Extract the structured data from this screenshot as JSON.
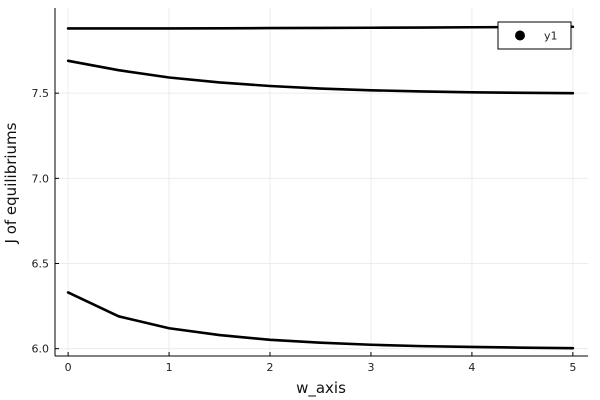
{
  "chart_data": {
    "type": "line",
    "title": "",
    "xlabel": "w_axis",
    "ylabel": "J of equilibriums",
    "xlim": [
      -0.13,
      5.15
    ],
    "ylim": [
      5.957,
      8.0
    ],
    "xticks": [
      0,
      1,
      2,
      3,
      4,
      5
    ],
    "yticks": [
      6.0,
      6.5,
      7.0,
      7.5
    ],
    "xtick_labels": [
      "0",
      "1",
      "2",
      "3",
      "4",
      "5"
    ],
    "ytick_labels": [
      "6.0",
      "6.5",
      "7.0",
      "7.5"
    ],
    "grid": true,
    "legend": {
      "position": "top-right",
      "entries": [
        {
          "label": "y1",
          "marker": "circle",
          "color": "#000000"
        }
      ]
    },
    "series": [
      {
        "color": "#000000",
        "x": [
          0,
          0.5,
          1,
          1.5,
          2,
          2.5,
          3,
          3.5,
          4,
          4.5,
          5
        ],
        "y": [
          7.88,
          7.88,
          7.88,
          7.881,
          7.882,
          7.883,
          7.884,
          7.885,
          7.887,
          7.888,
          7.89
        ]
      },
      {
        "color": "#000000",
        "x": [
          0,
          0.5,
          1,
          1.5,
          2,
          2.5,
          3,
          3.5,
          4,
          4.5,
          5
        ],
        "y": [
          7.69,
          7.635,
          7.592,
          7.563,
          7.542,
          7.527,
          7.517,
          7.51,
          7.505,
          7.502,
          7.5
        ]
      },
      {
        "color": "#000000",
        "x": [
          0,
          0.5,
          1,
          1.5,
          2,
          2.5,
          3,
          3.5,
          4,
          4.5,
          5
        ],
        "y": [
          6.33,
          6.19,
          6.12,
          6.08,
          6.052,
          6.035,
          6.023,
          6.015,
          6.01,
          6.006,
          6.003
        ]
      }
    ]
  }
}
